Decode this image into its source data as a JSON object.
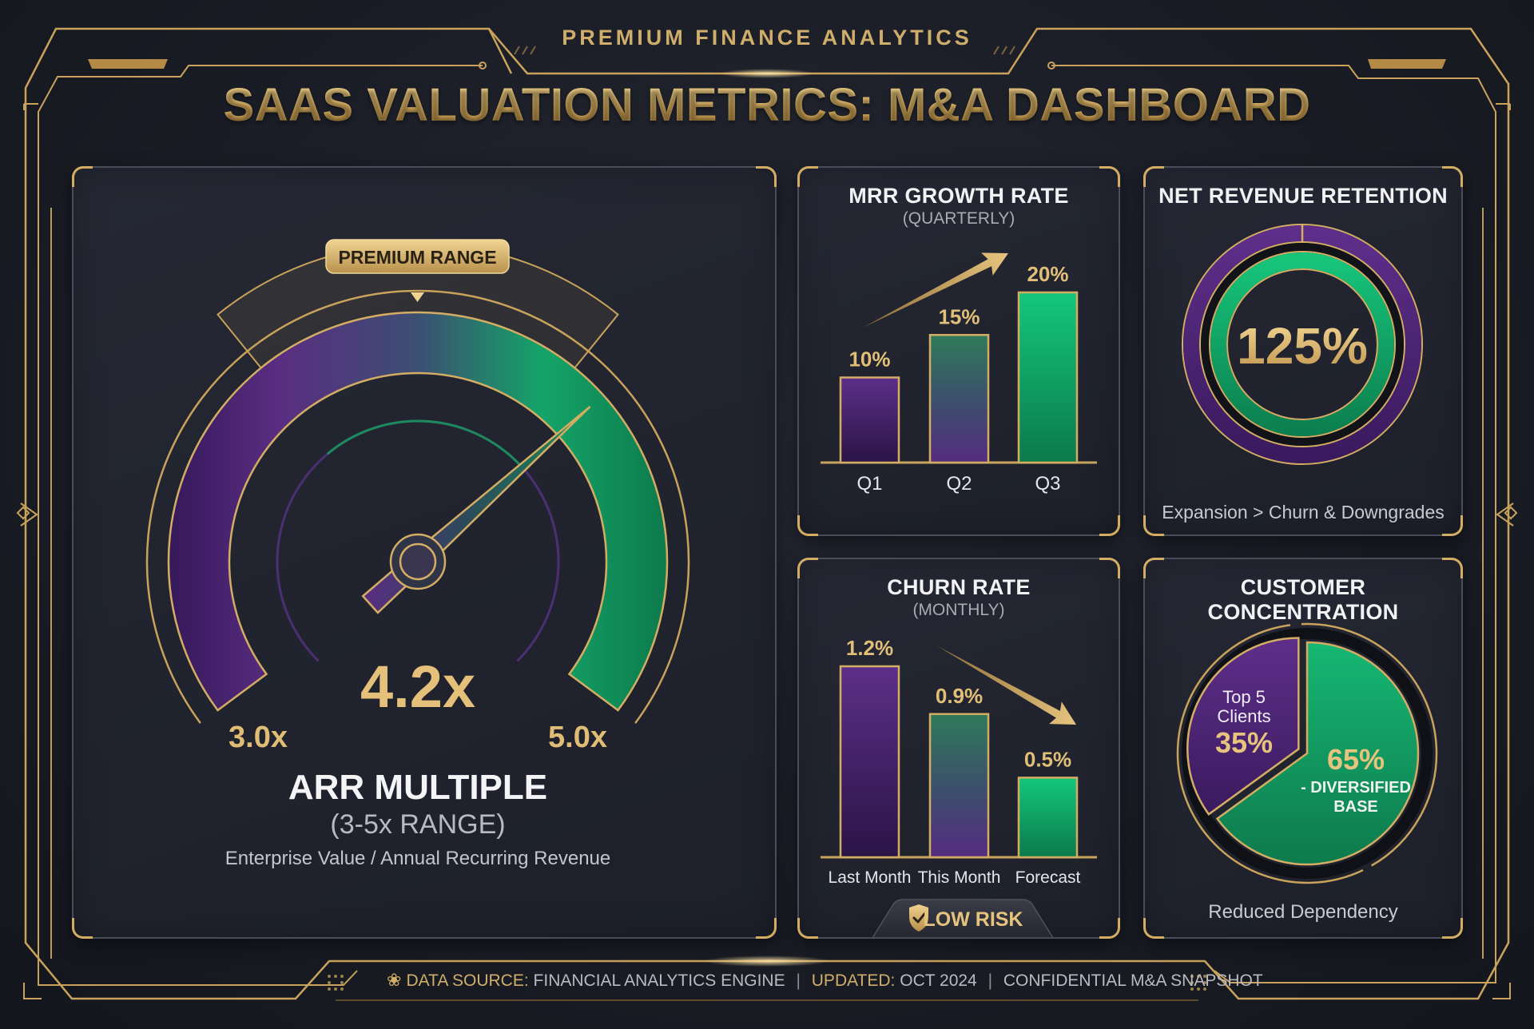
{
  "header": {
    "kicker": "PREMIUM FINANCE ANALYTICS",
    "title": "SAAS VALUATION METRICS: M&A DASHBOARD"
  },
  "colors": {
    "gold": "#d4ad64",
    "purple": "#5a2d82",
    "green": "#12b76a",
    "background": "#1b1d26"
  },
  "arr_gauge": {
    "badge": "PREMIUM RANGE",
    "value": 4.2,
    "value_label": "4.2x",
    "min": 3.0,
    "max": 5.0,
    "min_label": "3.0x",
    "max_label": "5.0x",
    "title": "ARR MULTIPLE",
    "subtitle": "(3-5x RANGE)",
    "description": "Enterprise Value / Annual Recurring Revenue"
  },
  "chart_data": [
    {
      "type": "bar",
      "title": "MRR GROWTH RATE",
      "subtitle": "(QUARTERLY)",
      "categories": [
        "Q1",
        "Q2",
        "Q3"
      ],
      "values": [
        10,
        15,
        20
      ],
      "labels": [
        "10%",
        "15%",
        "20%"
      ],
      "unit": "%",
      "trend": "up",
      "ylim": [
        0,
        20
      ]
    },
    {
      "type": "bar",
      "title": "CHURN RATE",
      "subtitle": "(MONTHLY)",
      "categories": [
        "Last Month",
        "This Month",
        "Forecast"
      ],
      "values": [
        1.2,
        0.9,
        0.5
      ],
      "labels": [
        "1.2%",
        "0.9%",
        "0.5%"
      ],
      "unit": "%",
      "trend": "down",
      "ylim": [
        0,
        1.2
      ]
    },
    {
      "type": "pie",
      "title": "CUSTOMER CONCENTRATION",
      "slices": [
        {
          "name": "Top 5 Clients",
          "value": 35,
          "label": "35%",
          "line1": "Top 5",
          "line2": "Clients"
        },
        {
          "name": "Diversified Base",
          "value": 65,
          "label": "65%",
          "line1": "- DIVERSIFIED",
          "line2": "BASE"
        }
      ]
    }
  ],
  "nrr": {
    "title": "NET REVENUE RETENTION",
    "value": 125,
    "value_label": "125%",
    "caption": "Expansion > Churn & Downgrades"
  },
  "churn": {
    "badge": "LOW RISK",
    "badge_icon": "shield-check-icon"
  },
  "concentration": {
    "caption": "Reduced Dependency"
  },
  "footer": {
    "source_label": "DATA SOURCE:",
    "source_value": "FINANCIAL ANALYTICS ENGINE",
    "updated_label": "UPDATED:",
    "updated_value": "OCT 2024",
    "note": "CONFIDENTIAL M&A SNAPSHOT",
    "separator": "|"
  }
}
